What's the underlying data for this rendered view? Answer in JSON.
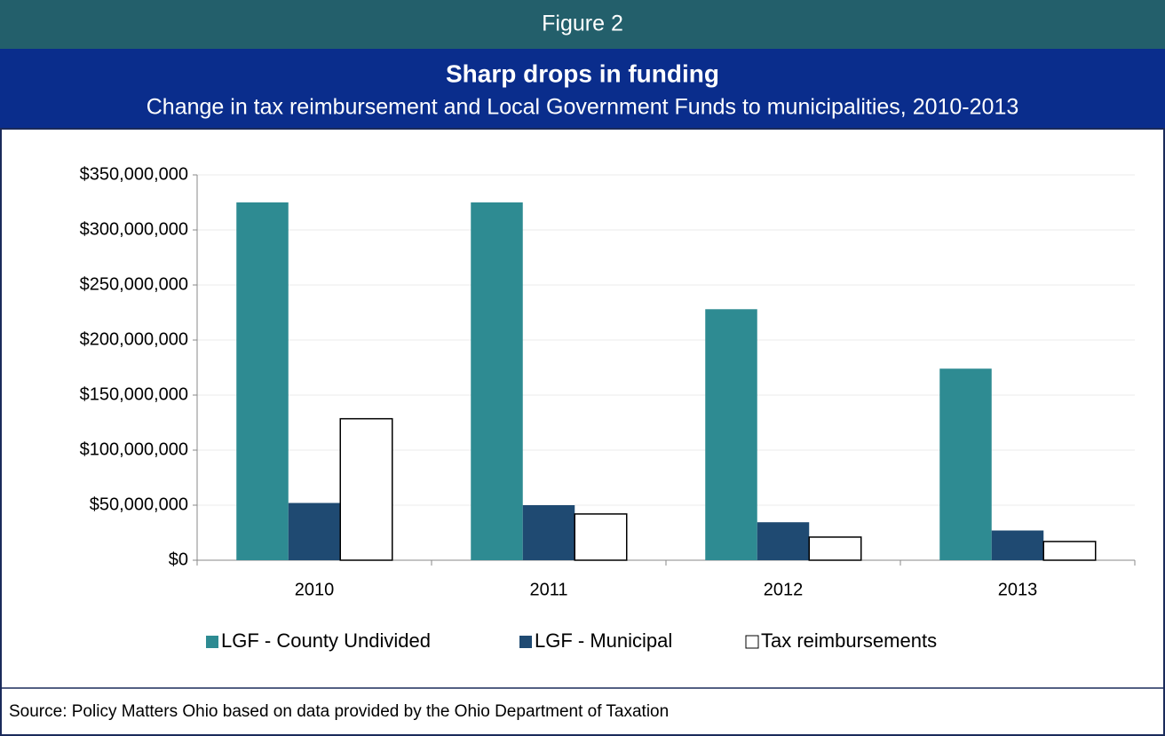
{
  "chart_data": {
    "type": "bar",
    "figure_label": "Figure 2",
    "title": "Sharp drops in funding",
    "subtitle": "Change in tax reimbursement and Local Government Funds to municipalities, 2010-2013",
    "source": "Source: Policy Matters Ohio based on data provided by the Ohio Department of Taxation",
    "categories": [
      "2010",
      "2011",
      "2012",
      "2013"
    ],
    "series": [
      {
        "name": "LGF - County Undivided",
        "color": "#2e8b92",
        "values": [
          325000000,
          325000000,
          228000000,
          174000000
        ]
      },
      {
        "name": "LGF - Municipal",
        "color": "#1f4a72",
        "values": [
          52000000,
          50000000,
          34500000,
          27000000
        ]
      },
      {
        "name": "Tax reimbursements",
        "color": "#ffffff",
        "values": [
          128500000,
          42000000,
          21000000,
          17000000
        ]
      }
    ],
    "ylim": [
      0,
      350000000
    ],
    "yticks": [
      {
        "value": 0,
        "label": "$0"
      },
      {
        "value": 50000000,
        "label": "$50,000,000"
      },
      {
        "value": 100000000,
        "label": "$100,000,000"
      },
      {
        "value": 150000000,
        "label": "$150,000,000"
      },
      {
        "value": 200000000,
        "label": "$200,000,000"
      },
      {
        "value": 250000000,
        "label": "$250,000,000"
      },
      {
        "value": 300000000,
        "label": "$300,000,000"
      },
      {
        "value": 350000000,
        "label": "$350,000,000"
      }
    ],
    "grid": true,
    "legend": "bottom"
  }
}
